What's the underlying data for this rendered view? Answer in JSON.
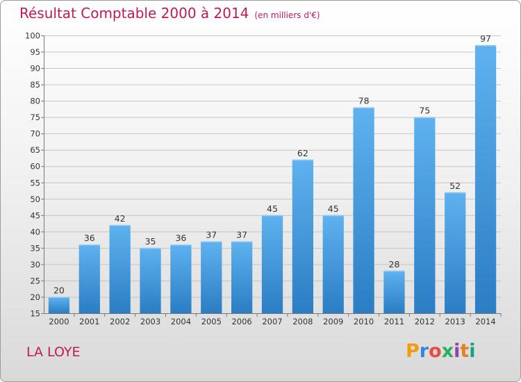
{
  "header": {
    "title": "Résultat Comptable 2000 à 2014",
    "subtitle": "(en milliers d'€)"
  },
  "footer": {
    "commune": "LA LOYE",
    "logo_text": "Proxiti"
  },
  "colors": {
    "accent": "#c2185b",
    "bar": "#3d95dc",
    "logo": [
      "#f39c12",
      "#2e86de",
      "#e74c3c",
      "#27ae60",
      "#8e44ad",
      "#e67e22",
      "#16a085"
    ]
  },
  "chart_data": {
    "type": "bar",
    "title": "Résultat Comptable 2000 à 2014",
    "subtitle": "(en milliers d'€)",
    "categories": [
      "2000",
      "2001",
      "2002",
      "2003",
      "2004",
      "2005",
      "2006",
      "2007",
      "2008",
      "2009",
      "2010",
      "2011",
      "2012",
      "2013",
      "2014"
    ],
    "values": [
      20,
      36,
      42,
      35,
      36,
      37,
      37,
      45,
      62,
      45,
      78,
      28,
      75,
      52,
      97
    ],
    "ylim": [
      15,
      100
    ],
    "yticks": [
      15,
      20,
      25,
      30,
      35,
      40,
      45,
      50,
      55,
      60,
      65,
      70,
      75,
      80,
      85,
      90,
      95,
      100
    ],
    "grid": true,
    "legend": "none"
  }
}
